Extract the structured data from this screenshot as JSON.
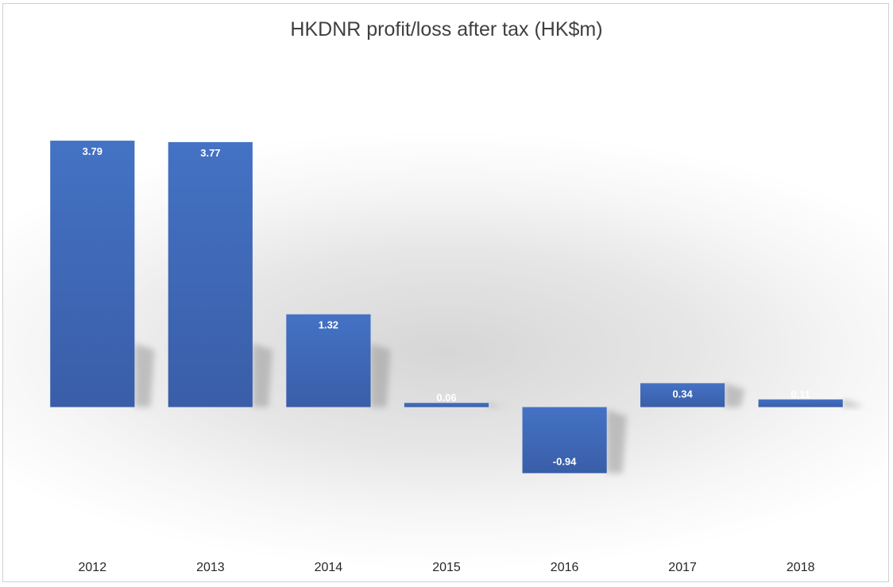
{
  "chart_data": {
    "type": "bar",
    "title": "HKDNR profit/loss after tax (HK$m)",
    "xlabel": "",
    "ylabel": "",
    "categories": [
      "2012",
      "2013",
      "2014",
      "2015",
      "2016",
      "2017",
      "2018"
    ],
    "values": [
      3.79,
      3.77,
      1.32,
      0.06,
      -0.94,
      0.34,
      0.11
    ],
    "data_labels": [
      "3.79",
      "3.77",
      "1.32",
      "0.06",
      "-0.94",
      "0.34",
      "0.11"
    ],
    "ylim": [
      -2.0,
      4.5
    ],
    "grid": false,
    "legend": "none",
    "colors": {
      "bar_top": "#4472c4",
      "bar_bottom": "#3a5ea8",
      "shadow": "#9a9a9a",
      "label": "#ffffff",
      "title": "#404040",
      "tick": "#262626"
    }
  }
}
